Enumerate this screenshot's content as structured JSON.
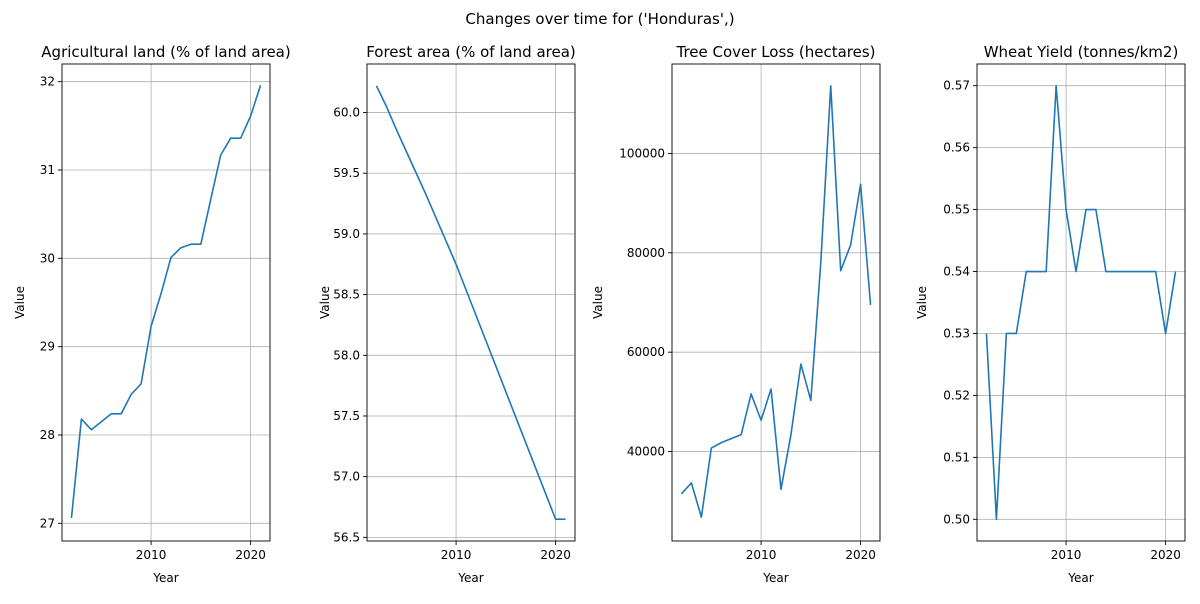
{
  "figure_title": "Changes over time for ('Honduras',)",
  "colors": {
    "line": "#1f77b4",
    "grid": "#b0b0b0",
    "axis": "#000000"
  },
  "chart_data": [
    {
      "type": "line",
      "title": "Agricultural land (% of land area)",
      "xlabel": "Year",
      "ylabel": "Value",
      "xlim": [
        2001.05,
        2021.95
      ],
      "ylim": [
        26.8,
        32.2
      ],
      "xticks": [
        2010,
        2020
      ],
      "yticks": [
        27,
        28,
        29,
        30,
        31,
        32
      ],
      "ytick_labels": [
        "27",
        "28",
        "29",
        "30",
        "31",
        "32"
      ],
      "grid": true,
      "x": [
        2002,
        2003,
        2004,
        2005,
        2006,
        2007,
        2008,
        2009,
        2010,
        2011,
        2012,
        2013,
        2014,
        2015,
        2016,
        2017,
        2018,
        2019,
        2020,
        2021
      ],
      "y": [
        27.06,
        28.18,
        28.06,
        28.15,
        28.24,
        28.24,
        28.46,
        28.58,
        29.23,
        29.6,
        30.01,
        30.12,
        30.16,
        30.16,
        30.67,
        31.17,
        31.36,
        31.36,
        31.61,
        31.96
      ]
    },
    {
      "type": "line",
      "title": "Forest area (% of land area)",
      "xlabel": "Year",
      "ylabel": "Value",
      "xlim": [
        2001.05,
        2021.95
      ],
      "ylim": [
        56.47,
        60.4
      ],
      "xticks": [
        2010,
        2020
      ],
      "yticks": [
        56.5,
        57.0,
        57.5,
        58.0,
        58.5,
        59.0,
        59.5,
        60.0
      ],
      "ytick_labels": [
        "56.5",
        "57.0",
        "57.5",
        "58.0",
        "58.5",
        "59.0",
        "59.5",
        "60.0"
      ],
      "grid": true,
      "x": [
        2002,
        2003,
        2004,
        2005,
        2006,
        2007,
        2008,
        2009,
        2010,
        2011,
        2012,
        2013,
        2014,
        2015,
        2016,
        2017,
        2018,
        2019,
        2020,
        2021
      ],
      "y": [
        60.22,
        60.05,
        59.86,
        59.68,
        59.5,
        59.32,
        59.13,
        58.94,
        58.75,
        58.54,
        58.33,
        58.12,
        57.91,
        57.7,
        57.49,
        57.28,
        57.07,
        56.86,
        56.65,
        56.65
      ]
    },
    {
      "type": "line",
      "title": "Tree Cover Loss (hectares)",
      "xlabel": "Year",
      "ylabel": "Value",
      "xlim": [
        2001.05,
        2021.95
      ],
      "ylim": [
        22000,
        118000
      ],
      "xticks": [
        2010,
        2020
      ],
      "yticks": [
        40000,
        60000,
        80000,
        100000
      ],
      "ytick_labels": [
        "40000",
        "60000",
        "80000",
        "100000"
      ],
      "grid": true,
      "x": [
        2002,
        2003,
        2004,
        2005,
        2006,
        2007,
        2008,
        2009,
        2010,
        2011,
        2012,
        2013,
        2014,
        2015,
        2016,
        2017,
        2018,
        2019,
        2020,
        2021
      ],
      "y": [
        31500,
        33700,
        26800,
        40700,
        41800,
        42600,
        43400,
        51600,
        46300,
        52600,
        32400,
        43400,
        57600,
        50300,
        78000,
        113600,
        76400,
        81600,
        93800,
        69500
      ]
    },
    {
      "type": "line",
      "title": "Wheat Yield (tonnes/km2)",
      "xlabel": "Year",
      "ylabel": "Value",
      "xlim": [
        2001.05,
        2021.95
      ],
      "ylim": [
        0.4965,
        0.5735
      ],
      "xticks": [
        2010,
        2020
      ],
      "yticks": [
        0.5,
        0.51,
        0.52,
        0.53,
        0.54,
        0.55,
        0.56,
        0.57
      ],
      "ytick_labels": [
        "0.50",
        "0.51",
        "0.52",
        "0.53",
        "0.54",
        "0.55",
        "0.56",
        "0.57"
      ],
      "grid": true,
      "x": [
        2002,
        2003,
        2004,
        2005,
        2006,
        2007,
        2008,
        2009,
        2010,
        2011,
        2012,
        2013,
        2014,
        2015,
        2016,
        2017,
        2018,
        2019,
        2020,
        2021
      ],
      "y": [
        0.53,
        0.5,
        0.53,
        0.53,
        0.54,
        0.54,
        0.54,
        0.57,
        0.55,
        0.54,
        0.55,
        0.55,
        0.54,
        0.54,
        0.54,
        0.54,
        0.54,
        0.54,
        0.53,
        0.54
      ]
    }
  ]
}
